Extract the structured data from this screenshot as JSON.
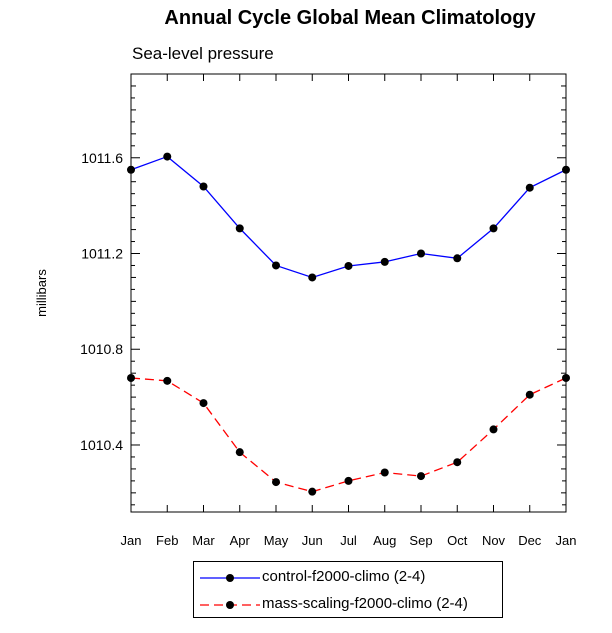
{
  "chart_data": {
    "type": "line",
    "title": "Annual Cycle Global Mean Climatology",
    "subtitle": "Sea-level pressure",
    "xlabel": "",
    "ylabel": "millibars",
    "categories": [
      "Jan",
      "Feb",
      "Mar",
      "Apr",
      "May",
      "Jun",
      "Jul",
      "Aug",
      "Sep",
      "Oct",
      "Nov",
      "Dec",
      "Jan"
    ],
    "ylim": [
      1010.12,
      1011.95
    ],
    "yticks": [
      1010.4,
      1010.8,
      1011.2,
      1011.6
    ],
    "ytick_labels": [
      "1010.4",
      "1010.8",
      "1011.2",
      "1011.6"
    ],
    "series": [
      {
        "name": "control-f2000-climo (2-4)",
        "color": "#0000ff",
        "dash": "solid",
        "values": [
          1011.55,
          1011.605,
          1011.48,
          1011.305,
          1011.15,
          1011.1,
          1011.148,
          1011.165,
          1011.2,
          1011.18,
          1011.305,
          1011.475,
          1011.55
        ]
      },
      {
        "name": "mass-scaling-f2000-climo (2-4)",
        "color": "#ff0000",
        "dash": "dashed",
        "values": [
          1010.68,
          1010.668,
          1010.575,
          1010.37,
          1010.245,
          1010.205,
          1010.25,
          1010.285,
          1010.27,
          1010.328,
          1010.465,
          1010.61,
          1010.68
        ]
      }
    ],
    "grid": false,
    "legend_position": "bottom"
  }
}
